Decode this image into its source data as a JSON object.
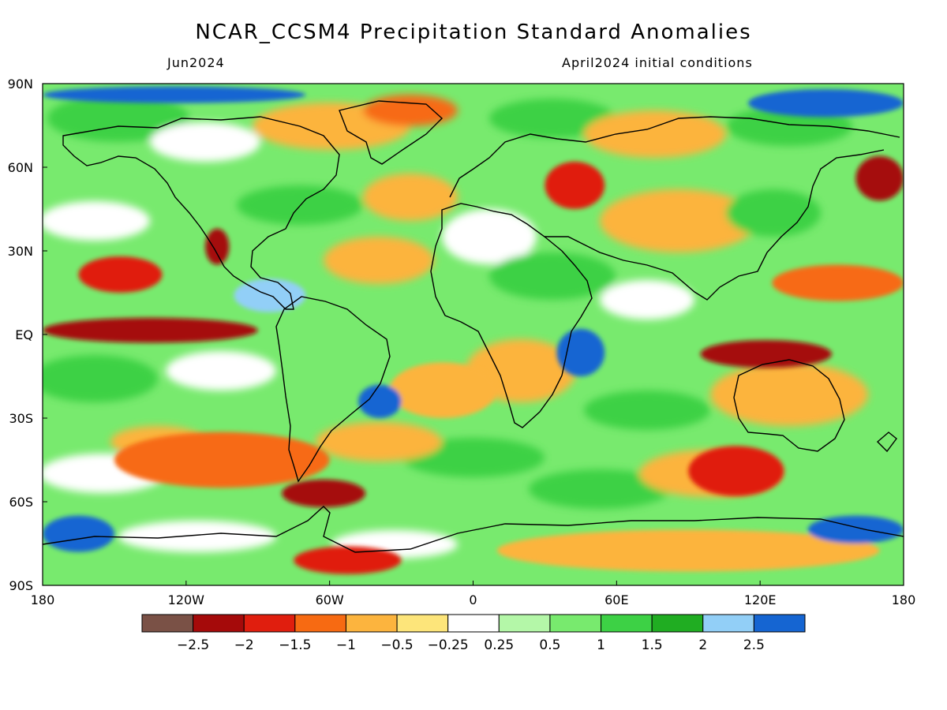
{
  "header": {
    "title": "NCAR_CCSM4 Precipitation Standard Anomalies",
    "valid_month": "Jun2024",
    "init_conditions": "April2024 initial conditions"
  },
  "map": {
    "projection": "cylindrical equidistant",
    "lon_range": [
      -180,
      180
    ],
    "lat_range": [
      -90,
      90
    ],
    "coastlines": true,
    "lat_ticks": [
      {
        "lat": 90,
        "label": "90N"
      },
      {
        "lat": 60,
        "label": "60N"
      },
      {
        "lat": 30,
        "label": "30N"
      },
      {
        "lat": 0,
        "label": "EQ"
      },
      {
        "lat": -30,
        "label": "30S"
      },
      {
        "lat": -60,
        "label": "60S"
      },
      {
        "lat": -90,
        "label": "90S"
      }
    ],
    "lon_ticks": [
      {
        "lon": -180,
        "label": "180"
      },
      {
        "lon": -120,
        "label": "120W"
      },
      {
        "lon": -60,
        "label": "60W"
      },
      {
        "lon": 0,
        "label": "0"
      },
      {
        "lon": 60,
        "label": "60E"
      },
      {
        "lon": 120,
        "label": "120E"
      },
      {
        "lon": 180,
        "label": "180"
      }
    ]
  },
  "colorbar": {
    "colors": [
      "#7a5146",
      "#a50a0a",
      "#e01e0e",
      "#f76a12",
      "#fcb43e",
      "#fde57a",
      "#ffffff",
      "#b4f7a8",
      "#78ea6e",
      "#3dd145",
      "#20ad22",
      "#92cff7",
      "#1565d2"
    ],
    "labels": [
      "-2.5",
      "-2",
      "-1.5",
      "-1",
      "-0.5",
      "-0.25",
      "0.25",
      "0.5",
      "1",
      "1.5",
      "2",
      "2.5"
    ]
  },
  "chart_data": {
    "type": "heatmap",
    "title": "NCAR_CCSM4 Precipitation Standard Anomalies",
    "subtitle": "Jun2024",
    "ylim": [
      -90,
      90
    ],
    "xlim": [
      -180,
      180
    ],
    "legend_placement": "bottom",
    "color_bins": [
      -2.5,
      -2,
      -1.5,
      -1,
      -0.5,
      -0.25,
      0.25,
      0.5,
      1,
      1.5,
      2,
      2.5
    ],
    "regions": [
      {
        "lon": [
          -180,
          -90
        ],
        "lat": [
          -3,
          6
        ],
        "value": -2.2
      },
      {
        "lon": [
          -165,
          -130
        ],
        "lat": [
          15,
          28
        ],
        "value": -1.7
      },
      {
        "lon": [
          -112,
          -102
        ],
        "lat": [
          25,
          38
        ],
        "value": -2.2
      },
      {
        "lon": [
          -150,
          -60
        ],
        "lat": [
          -55,
          -35
        ],
        "value": -1.3
      },
      {
        "lon": [
          -80,
          -45
        ],
        "lat": [
          -62,
          -52
        ],
        "value": -2.2
      },
      {
        "lon": [
          -75,
          -30
        ],
        "lat": [
          -86,
          -76
        ],
        "value": -1.8
      },
      {
        "lon": [
          10,
          170
        ],
        "lat": [
          -85,
          -70
        ],
        "value": -1.0
      },
      {
        "lon": [
          95,
          150
        ],
        "lat": [
          -12,
          -2
        ],
        "value": -2.2
      },
      {
        "lon": [
          90,
          130
        ],
        "lat": [
          -58,
          -40
        ],
        "value": -2.0
      },
      {
        "lon": [
          125,
          180
        ],
        "lat": [
          12,
          25
        ],
        "value": -1.5
      },
      {
        "lon": [
          30,
          55
        ],
        "lat": [
          45,
          62
        ],
        "value": -1.6
      },
      {
        "lon": [
          160,
          180
        ],
        "lat": [
          48,
          64
        ],
        "value": -2.2
      },
      {
        "lon": [
          -35,
          10
        ],
        "lat": [
          -30,
          -10
        ],
        "value": -0.8
      },
      {
        "lon": [
          -180,
          -150
        ],
        "lat": [
          -78,
          -65
        ],
        "value": 2.6
      },
      {
        "lon": [
          140,
          180
        ],
        "lat": [
          -75,
          -65
        ],
        "value": 2.6
      },
      {
        "lon": [
          -180,
          -70
        ],
        "lat": [
          83,
          89
        ],
        "value": 2.6
      },
      {
        "lon": [
          115,
          180
        ],
        "lat": [
          78,
          88
        ],
        "value": 2.6
      },
      {
        "lon": [
          35,
          55
        ],
        "lat": [
          -15,
          2
        ],
        "value": 2.6
      },
      {
        "lon": [
          -48,
          -30
        ],
        "lat": [
          -30,
          -18
        ],
        "value": 2.6
      },
      {
        "lon": [
          -100,
          -70
        ],
        "lat": [
          8,
          20
        ],
        "value": 2.0
      }
    ]
  }
}
